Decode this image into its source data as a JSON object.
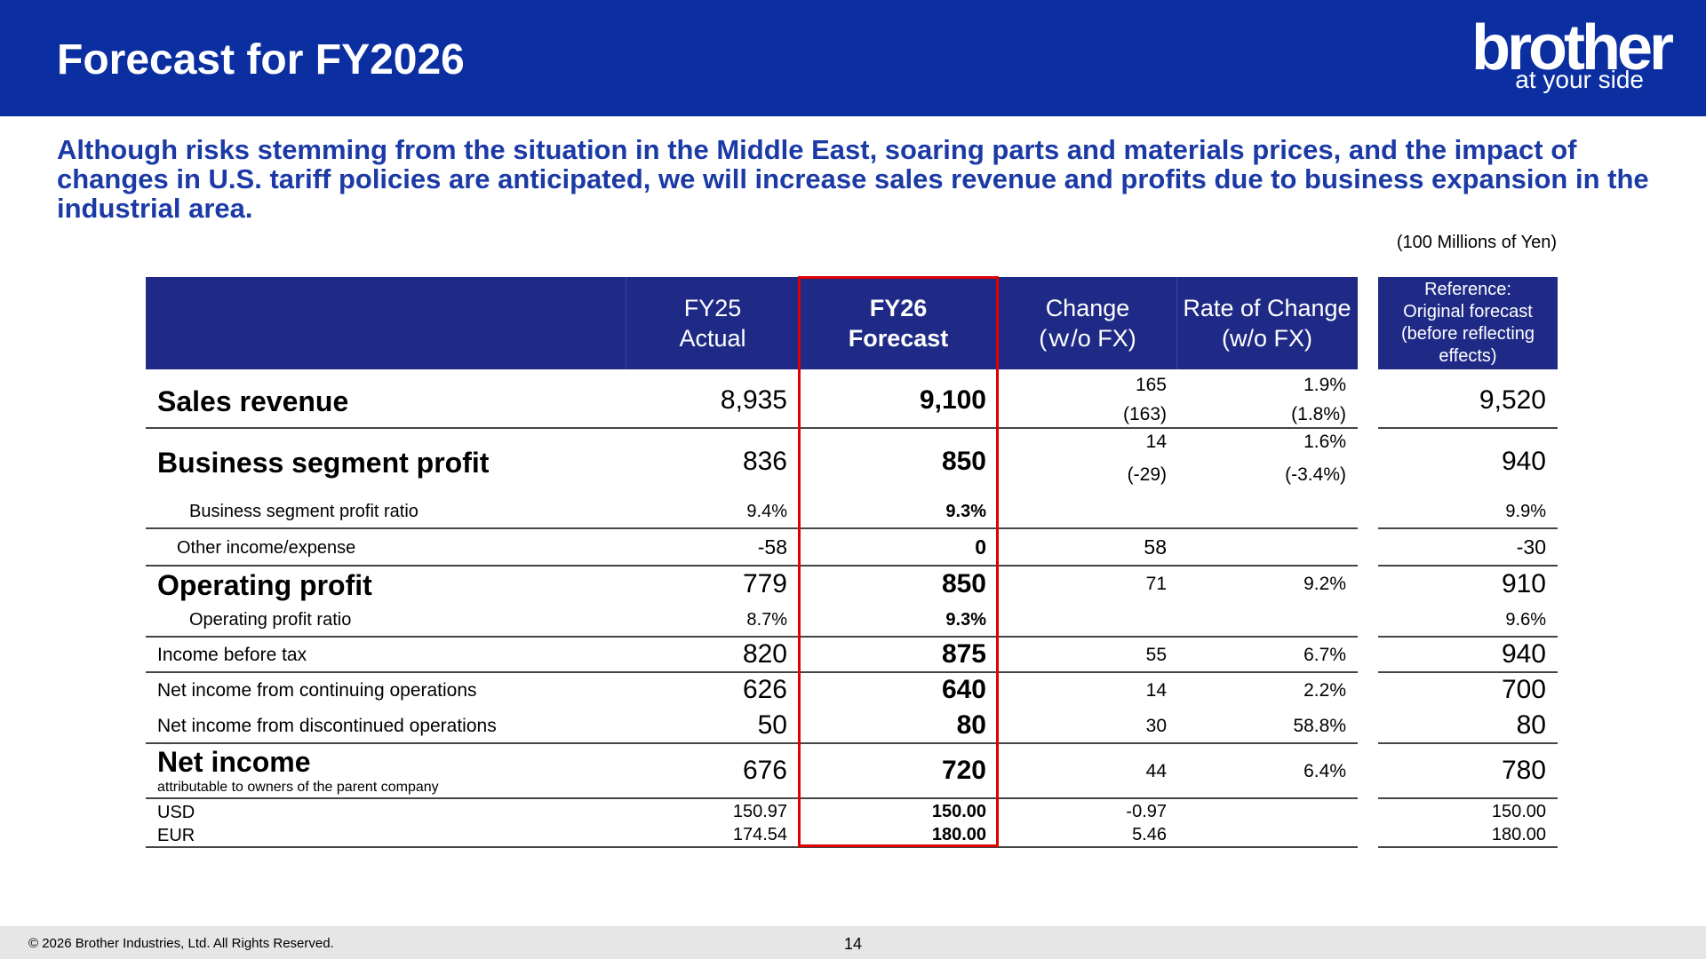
{
  "header": {
    "title": "Forecast for FY2026",
    "logo_word": "brother",
    "logo_tagline": "at your side",
    "background_color": "#0b2fa0"
  },
  "headline": "Although risks stemming from the situation in the Middle East, soaring parts and materials prices, and the impact of changes in U.S. tariff policies are anticipated, we will increase sales revenue and profits due to business expansion in the industrial area.",
  "unit_note": "(100 Millions of Yen)",
  "table": {
    "columns": {
      "fy25_line1": "FY25",
      "fy25_line2": "Actual",
      "fy26_line1": "FY26",
      "fy26_line2": "Forecast",
      "change_line1": "Change",
      "change_line2": "(ｗ/o FX)",
      "rate_line1": "Rate of Change",
      "rate_line2": "(w/o FX)",
      "ref_line1": "Reference:",
      "ref_line2": "Original forecast",
      "ref_line3": "(before reflecting",
      "ref_line4": "effects)"
    },
    "sales_revenue": {
      "label": "Sales revenue",
      "fy25": "8,935",
      "fy26": "9,100",
      "change": "165",
      "change_alt": "(163)",
      "rate": "1.9%",
      "rate_alt": "(1.8%)",
      "reference": "9,520"
    },
    "segment_profit": {
      "label": "Business segment profit",
      "fy25": "836",
      "fy26": "850",
      "change": "14",
      "change_alt": "(-29)",
      "rate": "1.6%",
      "rate_alt": "(-3.4%)",
      "reference": "940"
    },
    "segment_ratio": {
      "label": "Business segment profit ratio",
      "fy25": "9.4%",
      "fy26": "9.3%",
      "reference": "9.9%"
    },
    "other_income": {
      "label": "Other income/expense",
      "fy25": "-58",
      "fy26": "0",
      "change": "58",
      "reference": "-30"
    },
    "operating_profit": {
      "label": "Operating profit",
      "fy25": "779",
      "fy26": "850",
      "change": "71",
      "rate": "9.2%",
      "reference": "910"
    },
    "operating_ratio": {
      "label": "Operating profit ratio",
      "fy25": "8.7%",
      "fy26": "9.3%",
      "reference": "9.6%"
    },
    "income_before_tax": {
      "label": "Income before tax",
      "fy25": "820",
      "fy26": "875",
      "change": "55",
      "rate": "6.7%",
      "reference": "940"
    },
    "net_continuing": {
      "label": "Net income from continuing operations",
      "fy25": "626",
      "fy26": "640",
      "change": "14",
      "rate": "2.2%",
      "reference": "700"
    },
    "net_discontinued": {
      "label": "Net income from discontinued operations",
      "fy25": "50",
      "fy26": "80",
      "change": "30",
      "rate": "58.8%",
      "reference": "80"
    },
    "net_income": {
      "label": "Net income",
      "sublabel": "attributable to owners of the parent company",
      "fy25": "676",
      "fy26": "720",
      "change": "44",
      "rate": "6.4%",
      "reference": "780"
    },
    "usd": {
      "label": "USD",
      "fy25": "150.97",
      "fy26": "150.00",
      "change": "-0.97",
      "reference": "150.00"
    },
    "eur": {
      "label": "EUR",
      "fy25": "174.54",
      "fy26": "180.00",
      "change": "5.46",
      "reference": "180.00"
    }
  },
  "footer": {
    "copyright": "© 2026 Brother Industries, Ltd. All Rights Reserved.",
    "page_number": "14"
  },
  "colors": {
    "header_blue": "#0b2fa0",
    "table_header": "#1f2a86",
    "headline_text": "#1b3aa6",
    "highlight_box": "#e00000"
  }
}
